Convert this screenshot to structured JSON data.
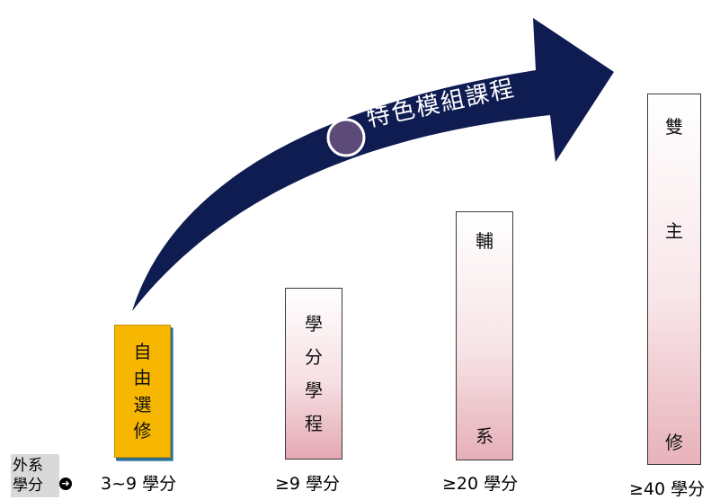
{
  "arrow": {
    "label": "特色模組課程",
    "color": "#0f1c52",
    "dot_color": "#5c4a78"
  },
  "bars": [
    {
      "id": "free-elective",
      "chars": [
        "自",
        "由",
        "選",
        "修"
      ],
      "caption": "3~9 學分",
      "color": "#f7b600"
    },
    {
      "id": "credit-program",
      "chars": [
        "學",
        "分",
        "學",
        "程"
      ],
      "caption": "≥9 學分"
    },
    {
      "id": "minor",
      "chars": [
        "輔",
        "系"
      ],
      "caption": "≥20 學分"
    },
    {
      "id": "double-major",
      "chars": [
        "雙",
        "主",
        "修"
      ],
      "caption": "≥40 學分"
    }
  ],
  "dept_credits": {
    "label_line1": "外系",
    "label_line2": "學分",
    "icon": "arrow-right-circle-icon"
  }
}
